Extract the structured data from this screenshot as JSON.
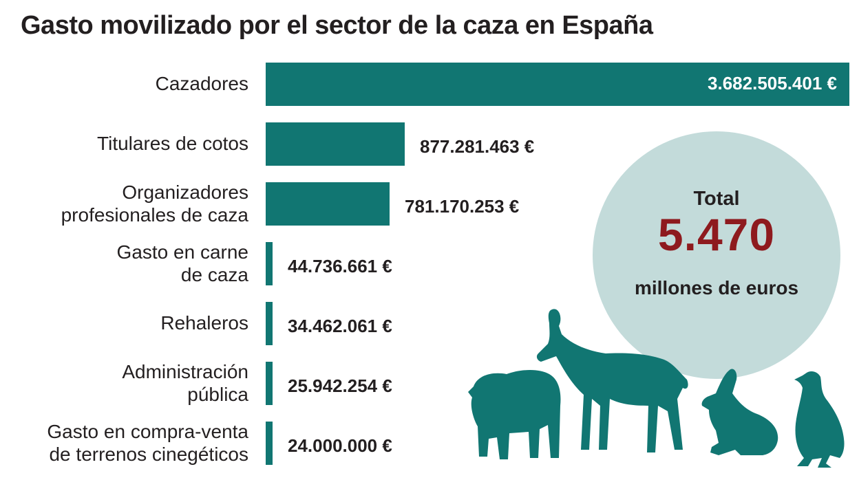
{
  "colors": {
    "bar": "#117672",
    "circle": "#c3dbda",
    "total_value": "#8e1a1e",
    "text": "#231f20"
  },
  "chart_data": {
    "type": "bar",
    "orientation": "horizontal",
    "title": "Gasto movilizado por el sector de la caza en España",
    "xlabel": "",
    "ylabel": "",
    "unit": "€",
    "xlim": [
      0,
      3682505401
    ],
    "categories": [
      "Cazadores",
      "Titulares de cotos",
      "Organizadores profesionales de caza",
      "Gasto en carne de caza",
      "Rehaleros",
      "Administración pública",
      "Gasto en compra-venta de terrenos cinegéticos"
    ],
    "category_lines": [
      [
        "Cazadores"
      ],
      [
        "Titulares de cotos"
      ],
      [
        "Organizadores",
        "profesionales de caza"
      ],
      [
        "Gasto en carne",
        "de caza"
      ],
      [
        "Rehaleros"
      ],
      [
        "Administración",
        "pública"
      ],
      [
        "Gasto en compra-venta",
        "de terrenos cinegéticos"
      ]
    ],
    "values": [
      3682505401,
      877281463,
      781170253,
      44736661,
      34462061,
      25942254,
      24000000
    ],
    "value_labels": [
      "3.682.505.401 €",
      "877.281.463 €",
      "781.170.253 €",
      "44.736.661 €",
      "34.462.061 €",
      "25.942.254 €",
      "24.000.000 €"
    ],
    "total": {
      "label": "Total",
      "value": "5.470",
      "unit": "millones de euros"
    },
    "illustration": [
      "boar-icon",
      "chamois-icon",
      "rabbit-icon",
      "partridge-icon"
    ]
  }
}
